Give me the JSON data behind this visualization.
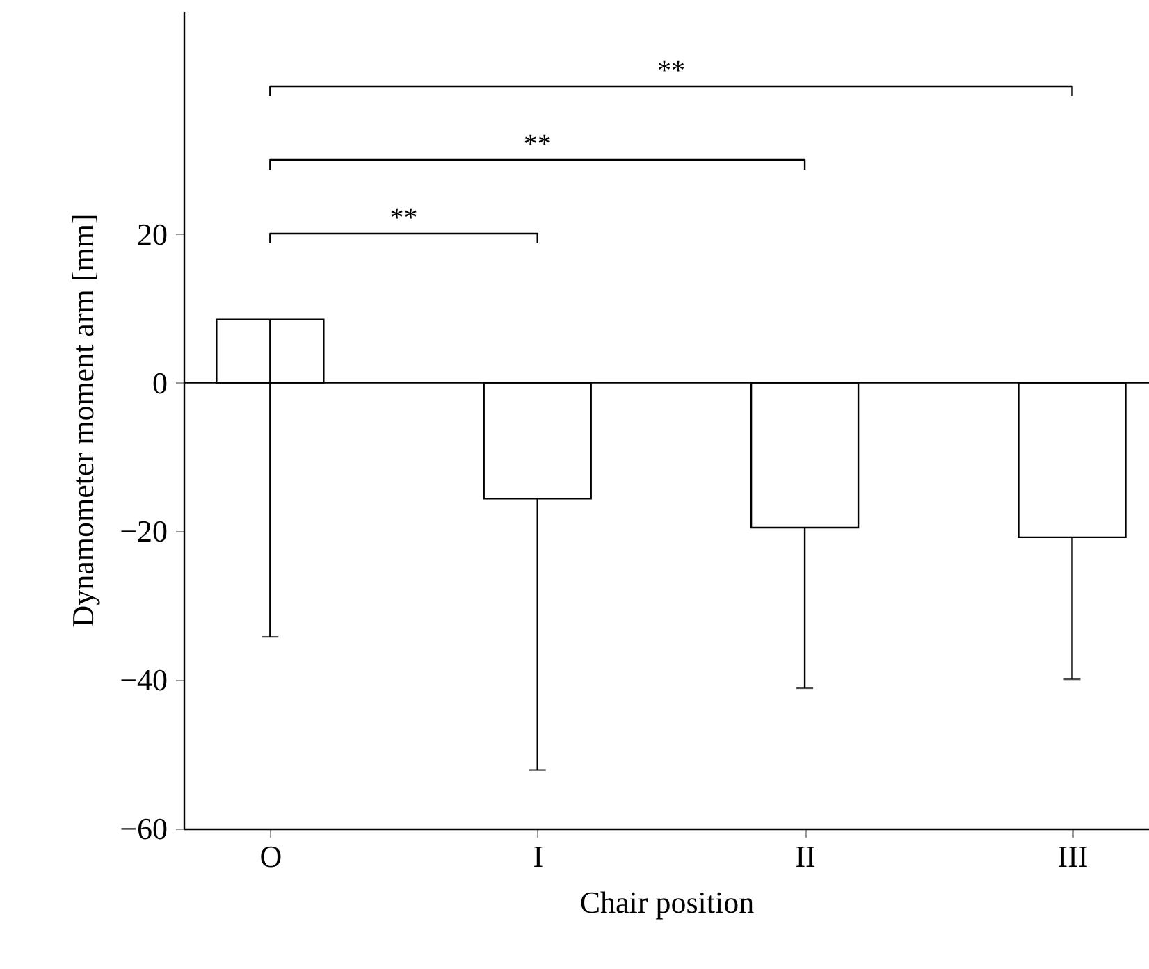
{
  "chart_data": {
    "type": "bar",
    "xlabel": "Chair position",
    "ylabel": "Dynamometer moment arm [mm]",
    "categories": [
      "O",
      "I",
      "II",
      "III"
    ],
    "values": [
      8.5,
      -15.6,
      -19.5,
      -20.8
    ],
    "errors": [
      [
        -34.2,
        8.5
      ],
      [
        -52.1,
        -15.6
      ],
      [
        -41.1,
        -19.5
      ],
      [
        -39.9,
        -20.8
      ]
    ],
    "color": "#ffffff",
    "ylim": [
      -60,
      50
    ],
    "yticks": [
      -60,
      -40,
      -20,
      0,
      20
    ],
    "ref_lines": [
      {
        "axis": "y",
        "value": 0
      }
    ],
    "annotations": [
      "**",
      "**",
      "**"
    ],
    "grid": false
  }
}
